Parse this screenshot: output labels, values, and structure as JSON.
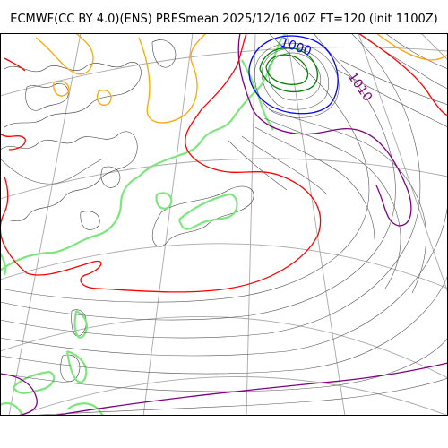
{
  "title": "ECMWF(CC BY 4.0)(ENS) PRESmean 2025/12/16 00Z FT=120 (init 1100Z)",
  "isobar_labels": [
    {
      "text": "1000",
      "color": "#0000ff"
    },
    {
      "text": "1010",
      "color": "#800080"
    }
  ],
  "colors": {
    "low_center_contour": "#008000",
    "contour_1000": "#0000ff",
    "contour_1008": "#800080",
    "contour_1012": "#ff0000",
    "contour_1016": "#ffa500",
    "ice_edge": "#7ee67e",
    "graticule": "#a8a8a8",
    "isobars": "#555555"
  }
}
